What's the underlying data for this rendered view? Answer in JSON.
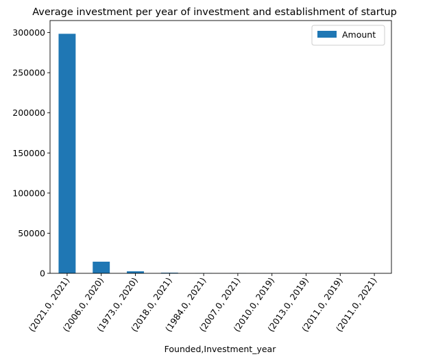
{
  "chart_data": {
    "type": "bar",
    "title": "Average investment per year of investment and establishment of startup",
    "xlabel": "Founded,Investment_year",
    "ylabel": "",
    "categories": [
      "(2021.0, 2021)",
      "(2006.0, 2020)",
      "(1973.0, 2020)",
      "(2018.0, 2021)",
      "(1984.0, 2021)",
      "(2007.0, 2021)",
      "(2010.0, 2019)",
      "(2013.0, 2019)",
      "(2011.0, 2019)",
      "(2011.0, 2021)"
    ],
    "series": [
      {
        "name": "Amount",
        "values": [
          298500,
          14500,
          2500,
          800,
          300,
          200,
          150,
          100,
          80,
          50
        ]
      }
    ],
    "ylim": [
      0,
      315000
    ],
    "yticks": [
      0,
      50000,
      100000,
      150000,
      200000,
      250000,
      300000
    ],
    "ytick_labels": [
      "0",
      "50000",
      "100000",
      "150000",
      "200000",
      "250000",
      "300000"
    ],
    "xtick_rotation": 55,
    "legend_position": "top-right",
    "grid": false,
    "colors": {
      "bar": "#1f77b4",
      "axis": "#000000"
    }
  }
}
